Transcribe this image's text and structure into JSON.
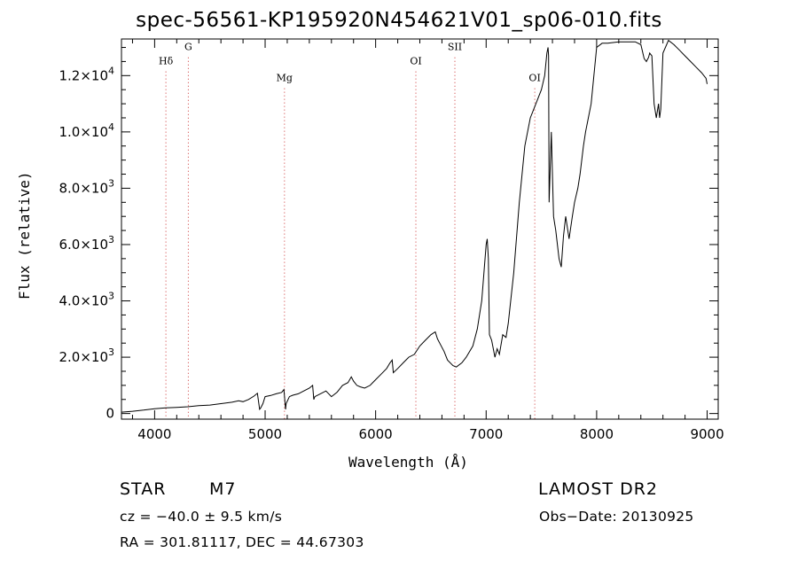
{
  "chart_data": {
    "type": "line",
    "title": "spec-56561-KP195920N454621V01_sp06-010.fits",
    "xlabel": "Wavelength (Å)",
    "ylabel": "Flux (relative)",
    "xlim": [
      3700,
      9100
    ],
    "ylim": [
      -200,
      13300
    ],
    "x_ticks": [
      4000,
      5000,
      6000,
      7000,
      8000,
      9000
    ],
    "y_ticks": [
      {
        "value": 0,
        "label": "0"
      },
      {
        "value": 2000,
        "mant": "2.0×10",
        "exp": "3"
      },
      {
        "value": 4000,
        "mant": "4.0×10",
        "exp": "3"
      },
      {
        "value": 6000,
        "mant": "6.0×10",
        "exp": "3"
      },
      {
        "value": 8000,
        "mant": "8.0×10",
        "exp": "3"
      },
      {
        "value": 10000,
        "mant": "1.0×10",
        "exp": "4"
      },
      {
        "value": 12000,
        "mant": "1.2×10",
        "exp": "4"
      }
    ],
    "grid": false,
    "line_markers": [
      {
        "label": "Hδ",
        "x": 4102,
        "label_y": 12400
      },
      {
        "label": "G",
        "x": 4305,
        "label_y": 12900
      },
      {
        "label": "Mg",
        "x": 5175,
        "label_y": 11800
      },
      {
        "label": "OI",
        "x": 6364,
        "label_y": 12400
      },
      {
        "label": "SII",
        "x": 6717,
        "label_y": 12900
      },
      {
        "label": "OI",
        "x": 7440,
        "label_y": 11800
      }
    ],
    "series": [
      {
        "x": [
          3700,
          3800,
          3900,
          4000,
          4100,
          4200,
          4300,
          4400,
          4500,
          4600,
          4700,
          4760,
          4800,
          4850,
          4900,
          4930,
          4950,
          4960,
          4980,
          5000,
          5050,
          5100,
          5150,
          5170,
          5185,
          5190,
          5220,
          5250,
          5300,
          5350,
          5400,
          5430,
          5440,
          5450,
          5500,
          5550,
          5600,
          5650,
          5700,
          5750,
          5780,
          5800,
          5830,
          5860,
          5900,
          5950,
          6000,
          6050,
          6100,
          6130,
          6150,
          6160,
          6200,
          6250,
          6300,
          6350,
          6400,
          6450,
          6500,
          6540,
          6560,
          6580,
          6620,
          6650,
          6700,
          6730,
          6780,
          6820,
          6880,
          6920,
          6960,
          6980,
          7000,
          7010,
          7020,
          7030,
          7050,
          7080,
          7100,
          7120,
          7150,
          7180,
          7200,
          7250,
          7300,
          7350,
          7400,
          7450,
          7500,
          7530,
          7550,
          7560,
          7565,
          7570,
          7590,
          7610,
          7630,
          7660,
          7680,
          7700,
          7720,
          7750,
          7780,
          7800,
          7830,
          7850,
          7880,
          7900,
          7950,
          8000,
          8050,
          8100,
          8200,
          8300,
          8350,
          8400,
          8430,
          8450,
          8470,
          8480,
          8500,
          8520,
          8540,
          8560,
          8570,
          8580,
          8600,
          8650,
          8700,
          8750,
          8800,
          8850,
          8900,
          8950,
          8990,
          9000
        ],
        "y": [
          50,
          80,
          120,
          170,
          200,
          220,
          240,
          280,
          300,
          350,
          400,
          450,
          420,
          500,
          620,
          720,
          150,
          200,
          350,
          600,
          640,
          700,
          750,
          850,
          150,
          350,
          600,
          650,
          700,
          800,
          900,
          1000,
          500,
          600,
          700,
          800,
          600,
          750,
          1000,
          1100,
          1300,
          1150,
          1000,
          950,
          900,
          1000,
          1200,
          1400,
          1600,
          1800,
          1900,
          1450,
          1600,
          1800,
          2000,
          2100,
          2400,
          2600,
          2800,
          2900,
          2650,
          2500,
          2200,
          1900,
          1700,
          1650,
          1800,
          2000,
          2400,
          3000,
          4000,
          5000,
          6000,
          6200,
          5500,
          2800,
          2600,
          2000,
          2300,
          2100,
          2800,
          2700,
          3200,
          5000,
          7500,
          9500,
          10500,
          11000,
          11500,
          12000,
          12800,
          13000,
          12700,
          7500,
          10000,
          7000,
          6500,
          5500,
          5200,
          6300,
          7000,
          6200,
          7000,
          7500,
          8000,
          8500,
          9500,
          10000,
          11000,
          13000,
          13150,
          13150,
          13200,
          13200,
          13200,
          13100,
          12600,
          12500,
          12650,
          12800,
          12700,
          11000,
          10500,
          11000,
          10500,
          10800,
          12800,
          13250,
          13100,
          12900,
          12700,
          12500,
          12300,
          12100,
          11900,
          11700
        ]
      }
    ]
  },
  "footer": {
    "object_class": "STAR",
    "subclass": "M7",
    "survey": "LAMOST DR2",
    "cz": "cz = −40.0 ± 9.5 km/s",
    "obs_date": "Obs−Date: 20130925",
    "coords": "RA = 301.81117, DEC =  44.67303"
  }
}
